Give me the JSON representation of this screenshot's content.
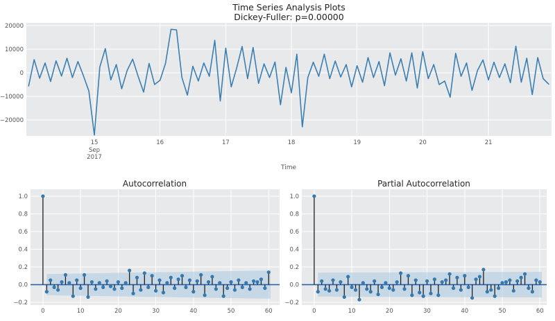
{
  "figure": {
    "suptitle_line1": "Time Series Analysis Plots",
    "suptitle_line2": "Dickey-Fuller: p=0.00000",
    "theme": {
      "figure_bg": "#ffffff",
      "axes_bg": "#e8e9eb",
      "grid_color": "#ffffff",
      "line_color": "#3b7eb1",
      "stem_color": "#1f1f1f",
      "marker_color": "#3579ad",
      "zero_line_color": "#2e62aa",
      "band_color": "#a9c9e1",
      "band_opacity": 0.55,
      "tick_color": "#555555",
      "title_color": "#262626"
    }
  },
  "chart_data": [
    {
      "id": "timeseries",
      "type": "line",
      "title": "Time Series Analysis Plots",
      "subtitle": "Dickey-Fuller: p=0.00000",
      "xlabel": "Time",
      "xlim": [
        13.965,
        21.96
      ],
      "ylim": [
        -26850,
        21240
      ],
      "x_ticks": [
        {
          "v": 15,
          "label": "15",
          "sub": [
            "Sep",
            "2017"
          ]
        },
        {
          "v": 16,
          "label": "16"
        },
        {
          "v": 17,
          "label": "17"
        },
        {
          "v": 18,
          "label": "18"
        },
        {
          "v": 19,
          "label": "19"
        },
        {
          "v": 20,
          "label": "20"
        },
        {
          "v": 21,
          "label": "21"
        }
      ],
      "y_ticks": [
        {
          "v": 20000,
          "label": "20000"
        },
        {
          "v": 10000,
          "label": "10000"
        },
        {
          "v": 0,
          "label": "0"
        },
        {
          "v": -10000,
          "label": "−10000"
        },
        {
          "v": -20000,
          "label": "−20000"
        }
      ],
      "x_start_day": 14.0,
      "x_step_days": 0.083333,
      "values": [
        -5600,
        5600,
        -2300,
        4200,
        -3700,
        5100,
        -1400,
        6200,
        -2000,
        4800,
        -1200,
        -7800,
        -26500,
        2500,
        10300,
        -3000,
        3500,
        -6800,
        1000,
        5800,
        -1500,
        -8200,
        4000,
        -5000,
        -3200,
        4000,
        18500,
        18300,
        -2000,
        -9500,
        2800,
        -3500,
        4200,
        -1500,
        13800,
        -12000,
        10500,
        -6000,
        2000,
        11200,
        -2500,
        10800,
        -4500,
        3800,
        -2000,
        4600,
        -13600,
        2300,
        -8500,
        7900,
        -23000,
        -2000,
        4500,
        -1500,
        7900,
        -2500,
        5000,
        -1800,
        3500,
        -6000,
        3000,
        -4000,
        6500,
        -2000,
        4800,
        -5500,
        8500,
        -1000,
        6000,
        -3500,
        8500,
        -6500,
        9000,
        -2500,
        3500,
        -5000,
        -3500,
        -10400,
        8300,
        -1500,
        4200,
        -7500,
        1000,
        5500,
        -3000,
        4500,
        -2000,
        3800,
        -4200,
        11300,
        -4000,
        6200,
        -9300,
        6500,
        -2500,
        -4800
      ]
    },
    {
      "id": "acf",
      "type": "stem",
      "title": "Autocorrelation",
      "xlim": [
        -3.3,
        62.9
      ],
      "ylim": [
        -0.231,
        1.078
      ],
      "x_ticks": [
        {
          "v": 0,
          "label": "0"
        },
        {
          "v": 10,
          "label": "10"
        },
        {
          "v": 20,
          "label": "20"
        },
        {
          "v": 30,
          "label": "30"
        },
        {
          "v": 40,
          "label": "40"
        },
        {
          "v": 50,
          "label": "50"
        },
        {
          "v": 60,
          "label": "60"
        }
      ],
      "y_ticks": [
        {
          "v": 1.0,
          "label": "1.0"
        },
        {
          "v": 0.8,
          "label": "0.8"
        },
        {
          "v": 0.6,
          "label": "0.6"
        },
        {
          "v": 0.4,
          "label": "0.4"
        },
        {
          "v": 0.2,
          "label": "0.2"
        },
        {
          "v": 0.0,
          "label": "0.0"
        },
        {
          "v": -0.2,
          "label": "−0.2"
        }
      ],
      "band": {
        "start_lag": 1,
        "end_lag": 60.5,
        "half_width_start": 0.12,
        "half_width_end": 0.16
      },
      "values": [
        1.0,
        -0.08,
        0.05,
        -0.03,
        -0.06,
        0.03,
        0.11,
        0.02,
        -0.13,
        0.05,
        -0.04,
        0.11,
        -0.14,
        0.03,
        -0.05,
        0.02,
        -0.03,
        0.04,
        -0.02,
        -0.05,
        0.03,
        -0.04,
        0.02,
        0.16,
        -0.1,
        0.08,
        -0.06,
        0.13,
        -0.03,
        0.1,
        -0.07,
        0.05,
        -0.09,
        0.02,
        0.08,
        -0.04,
        0.06,
        0.1,
        -0.03,
        0.05,
        -0.08,
        0.04,
        0.11,
        -0.12,
        0.03,
        0.09,
        -0.05,
        0.02,
        -0.13,
        -0.04,
        0.03,
        -0.06,
        0.05,
        -0.03,
        0.02,
        -0.05,
        0.04,
        0.03,
        0.06,
        -0.04,
        0.14
      ]
    },
    {
      "id": "pacf",
      "type": "stem",
      "title": "Partial Autocorrelation",
      "xlim": [
        -3.3,
        61.8
      ],
      "ylim": [
        -0.231,
        1.078
      ],
      "x_ticks": [
        {
          "v": 0,
          "label": "0"
        },
        {
          "v": 10,
          "label": "10"
        },
        {
          "v": 20,
          "label": "20"
        },
        {
          "v": 30,
          "label": "30"
        },
        {
          "v": 40,
          "label": "40"
        },
        {
          "v": 50,
          "label": "50"
        },
        {
          "v": 60,
          "label": "60"
        }
      ],
      "y_ticks": [
        {
          "v": 1.0,
          "label": "1.0"
        },
        {
          "v": 0.8,
          "label": "0.8"
        },
        {
          "v": 0.6,
          "label": "0.6"
        },
        {
          "v": 0.4,
          "label": "0.4"
        },
        {
          "v": 0.2,
          "label": "0.2"
        },
        {
          "v": 0.0,
          "label": "0.0"
        },
        {
          "v": -0.2,
          "label": "−0.2"
        }
      ],
      "band": {
        "start_lag": 1,
        "end_lag": 60.5,
        "half_width_start": 0.135,
        "half_width_end": 0.145
      },
      "values": [
        1.0,
        -0.08,
        0.04,
        -0.05,
        -0.07,
        0.05,
        -0.06,
        0.03,
        -0.14,
        0.09,
        -0.03,
        -0.06,
        -0.17,
        0.02,
        -0.05,
        -0.08,
        0.04,
        -0.11,
        -0.03,
        0.02,
        -0.04,
        -0.06,
        0.03,
        0.13,
        -0.05,
        0.1,
        -0.12,
        0.05,
        -0.09,
        -0.13,
        0.04,
        -0.1,
        0.06,
        -0.12,
        0.03,
        0.05,
        0.12,
        -0.04,
        0.08,
        -0.06,
        0.1,
        -0.03,
        -0.15,
        0.06,
        0.09,
        0.17,
        -0.08,
        -0.06,
        -0.13,
        -0.04,
        0.02,
        0.03,
        0.05,
        -0.07,
        0.04,
        0.08,
        0.12,
        -0.04,
        -0.08,
        0.05,
        0.03
      ]
    }
  ]
}
